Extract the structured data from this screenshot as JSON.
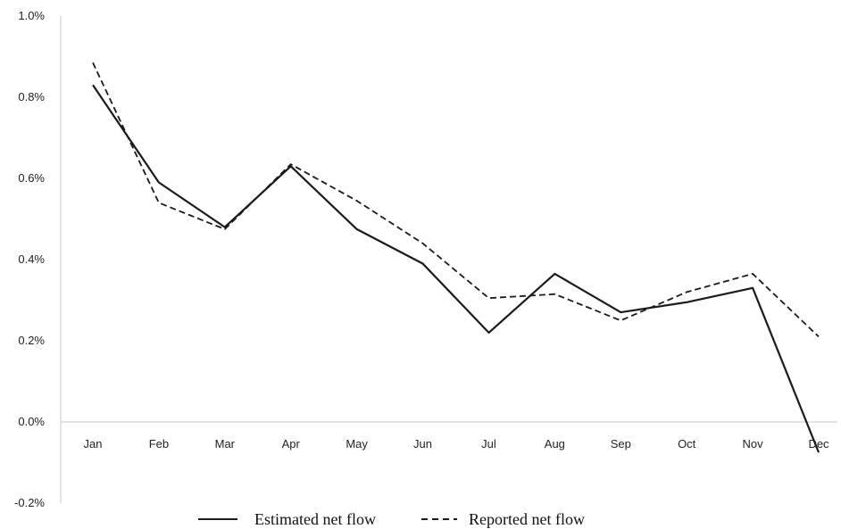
{
  "chart_data": {
    "type": "line",
    "title": "",
    "xlabel": "",
    "ylabel": "",
    "categories": [
      "Jan",
      "Feb",
      "Mar",
      "Apr",
      "May",
      "Jun",
      "Jul",
      "Aug",
      "Sep",
      "Oct",
      "Nov",
      "Dec"
    ],
    "ylim": [
      -0.2,
      1.0
    ],
    "y_ticks": [
      1.0,
      0.8,
      0.6,
      0.4,
      0.2,
      0.0,
      -0.2
    ],
    "y_tick_labels": [
      "1.0%",
      "0.8%",
      "0.6%",
      "0.4%",
      "0.2%",
      "0.0%",
      "-0.2%"
    ],
    "grid": false,
    "legend_position": "bottom",
    "series": [
      {
        "name": "Estimated net flow",
        "style": "solid",
        "color": "#1a1a1a",
        "values": [
          0.83,
          0.59,
          0.48,
          0.63,
          0.475,
          0.39,
          0.22,
          0.365,
          0.27,
          0.295,
          0.33,
          -0.075
        ]
      },
      {
        "name": "Reported net flow",
        "style": "dashed",
        "color": "#1a1a1a",
        "values": [
          0.885,
          0.54,
          0.475,
          0.635,
          0.545,
          0.44,
          0.305,
          0.315,
          0.25,
          0.32,
          0.365,
          0.21
        ]
      }
    ]
  }
}
